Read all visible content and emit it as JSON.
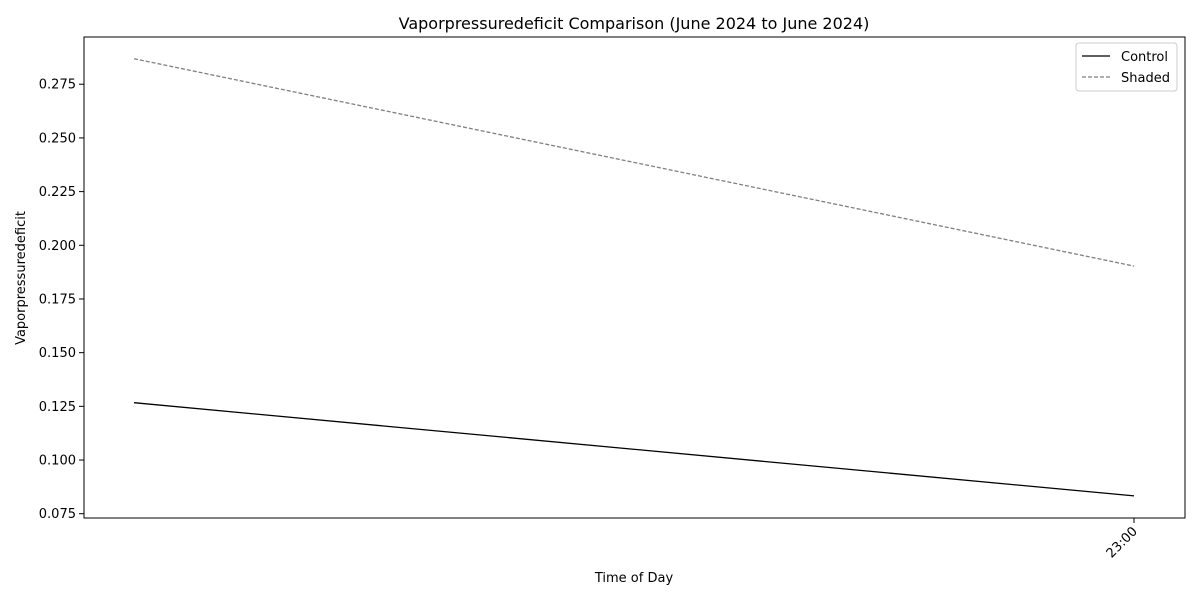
{
  "chart_data": {
    "type": "line",
    "title": "Vaporpressuredeficit Comparison (June 2024 to June 2024)",
    "xlabel": "Time of Day",
    "ylabel": "Vaporpressuredeficit",
    "x_tick_labels": [
      "23:00"
    ],
    "ylim": [
      0.073,
      0.297
    ],
    "y_ticks": [
      0.075,
      0.1,
      0.125,
      0.15,
      0.175,
      0.2,
      0.225,
      0.25,
      0.275
    ],
    "y_tick_labels": [
      "0.075",
      "0.100",
      "0.125",
      "0.150",
      "0.175",
      "0.200",
      "0.225",
      "0.250",
      "0.275"
    ],
    "grid": false,
    "legend": {
      "placement": "top-right"
    },
    "series": [
      {
        "name": "Control",
        "color": "#000000",
        "style": "solid",
        "values": [
          0.1267,
          0.0833
        ]
      },
      {
        "name": "Shaded",
        "color": "#808080",
        "style": "dashed",
        "values": [
          0.2869,
          0.1903
        ]
      }
    ]
  }
}
